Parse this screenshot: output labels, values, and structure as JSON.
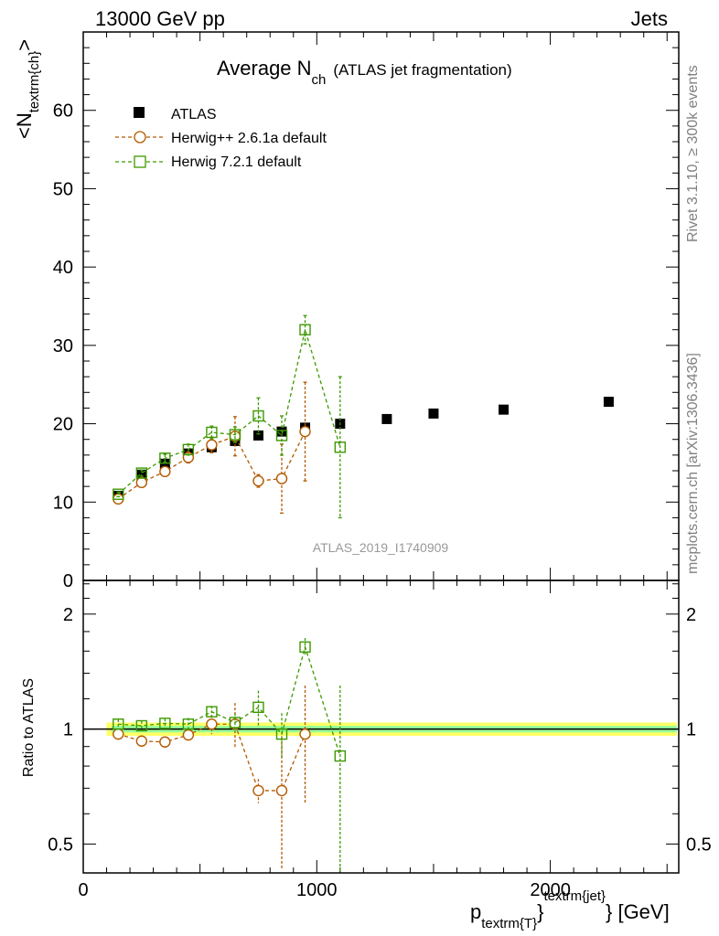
{
  "header": {
    "left": "13000 GeV pp",
    "right": "Jets"
  },
  "side": {
    "rivet": "Rivet 3.1.10, ≥ 300k events",
    "mcplots": "mcplots.cern.ch [arXiv:1306.3436]"
  },
  "chart_data": {
    "type": "scatter",
    "title_main": "Average N",
    "title_sub": "ch",
    "title_note": "(ATLAS jet fragmentation)",
    "watermark": "ATLAS_2019_I1740909",
    "ylabel_main": "<N",
    "ylabel_sub": "textrm{ch}",
    "ylabel_end": ">",
    "xlabel_main": "p",
    "xlabel_sub": "textrm{T}",
    "xlabel_sup": "textrm{jet}",
    "xlabel_end": "} [GeV]",
    "xlabel_brace": "}",
    "ratio_ylabel": "Ratio to ATLAS",
    "xlim": [
      0,
      2550
    ],
    "ylim": [
      0,
      70
    ],
    "ratio_ylim": [
      0.42,
      2.45
    ],
    "ratio_log": true,
    "x_ticks": [
      0,
      1000,
      2000
    ],
    "x_tick_labels": [
      "0",
      "1000",
      "2000"
    ],
    "y_ticks": [
      0,
      10,
      20,
      30,
      40,
      50,
      60
    ],
    "y_tick_labels": [
      "0",
      "10",
      "20",
      "30",
      "40",
      "50",
      "60"
    ],
    "ratio_ticks": [
      0.5,
      1,
      2
    ],
    "ratio_tick_labels": [
      "0.5",
      "1",
      "2"
    ],
    "legend_position": "top-left",
    "series": [
      {
        "name": "ATLAS",
        "color": "#000000",
        "marker": "filled-square",
        "x": [
          150,
          250,
          350,
          450,
          550,
          650,
          750,
          850,
          950,
          1100,
          1300,
          1500,
          1800,
          2250
        ],
        "y": [
          10.8,
          13.5,
          14.9,
          16.2,
          17.0,
          17.8,
          18.5,
          19.0,
          19.5,
          20.0,
          20.6,
          21.3,
          21.8,
          22.8
        ],
        "xerr": [
          50,
          50,
          50,
          50,
          50,
          50,
          50,
          50,
          50,
          100,
          100,
          100,
          200,
          250
        ]
      },
      {
        "name": "Herwig++ 2.6.1a default",
        "color": "#b35900",
        "marker": "open-circle",
        "x": [
          150,
          250,
          350,
          450,
          550,
          650,
          750,
          850,
          950
        ],
        "y": [
          10.4,
          12.5,
          13.9,
          15.7,
          17.3,
          18.4,
          12.7,
          13.0,
          19.0
        ],
        "yerr": [
          0.3,
          0.4,
          0.5,
          0.7,
          1.0,
          2.5,
          0.8,
          4.4,
          6.3
        ],
        "ratio": [
          0.97,
          0.93,
          0.925,
          0.965,
          1.03,
          1.03,
          0.69,
          0.69,
          0.97
        ],
        "ratio_err": [
          0.025,
          0.025,
          0.03,
          0.04,
          0.06,
          0.14,
          0.05,
          0.26,
          0.33
        ]
      },
      {
        "name": "Herwig 7.2.1 default",
        "color": "#3d9900",
        "marker": "open-square",
        "x": [
          150,
          250,
          350,
          450,
          550,
          650,
          750,
          850,
          950,
          1100
        ],
        "y": [
          11.0,
          13.7,
          15.6,
          16.7,
          18.9,
          18.6,
          21.0,
          18.5,
          32.0,
          17.0
        ],
        "yerr": [
          0.3,
          0.4,
          0.5,
          0.7,
          0.8,
          1.0,
          2.3,
          2.5,
          1.8,
          9.0
        ],
        "ratio": [
          1.03,
          1.02,
          1.035,
          1.03,
          1.11,
          1.04,
          1.14,
          0.97,
          1.64,
          0.85
        ],
        "ratio_err": [
          0.03,
          0.03,
          0.03,
          0.04,
          0.04,
          0.06,
          0.12,
          0.13,
          0.09,
          0.45
        ]
      }
    ]
  }
}
